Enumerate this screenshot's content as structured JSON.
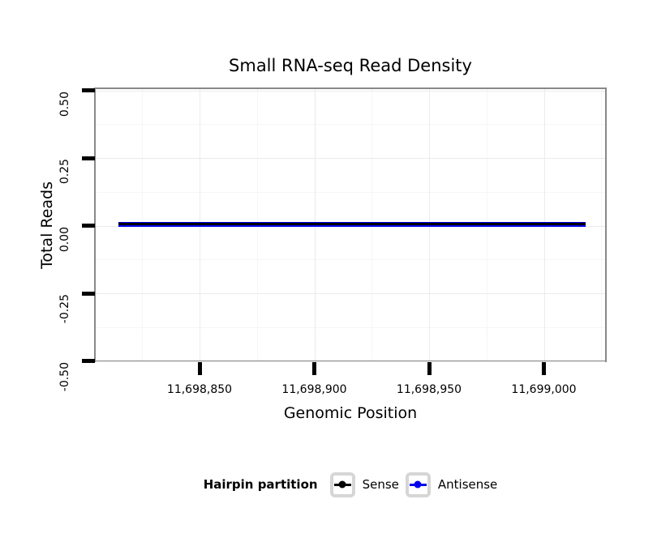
{
  "chart_data": {
    "type": "line",
    "title": "Small RNA-seq Read Density",
    "xlabel": "Genomic Position",
    "ylabel": "Total Reads",
    "x_tick_labels": [
      "11,698,850",
      "11,698,900",
      "11,698,950",
      "11,699,000"
    ],
    "x_tick_values": [
      11698850,
      11698900,
      11698950,
      11699000
    ],
    "y_tick_labels": [
      "0.50",
      "0.25",
      "0.00",
      "-0.25",
      "-0.50"
    ],
    "y_tick_values": [
      0.5,
      0.25,
      0.0,
      -0.25,
      -0.5
    ],
    "xlim": [
      11698804,
      11699028
    ],
    "ylim": [
      -0.5,
      0.5
    ],
    "grid": {
      "major": true,
      "minor": true,
      "major_color": "#ebebeb",
      "minor_color": "#f6f6f6"
    },
    "panel_border_color": "#898989",
    "series": [
      {
        "name": "Antisense",
        "color": "#0000EE",
        "y_constant": 0,
        "x_start": 11698814,
        "x_end": 11699018
      },
      {
        "name": "Sense",
        "color": "#000000",
        "y_constant": 0,
        "x_start": 11698814,
        "x_end": 11699018
      }
    ],
    "legend": {
      "title": "Hairpin partition",
      "position": "bottom",
      "entries": [
        {
          "label": "Sense",
          "color": "#000000"
        },
        {
          "label": "Antisense",
          "color": "#0000EE"
        }
      ]
    }
  }
}
